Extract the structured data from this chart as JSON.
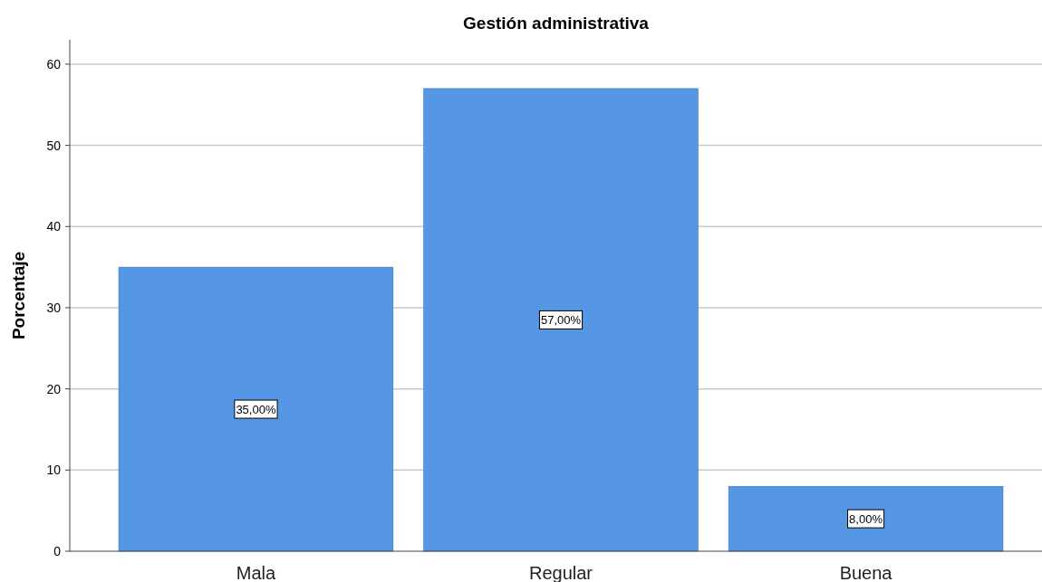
{
  "chart_data": {
    "type": "bar",
    "title": "Gestión administrativa",
    "ylabel": "Porcentaje",
    "categories": [
      "Mala",
      "Regular",
      "Buena"
    ],
    "values": [
      35,
      57,
      8
    ],
    "value_labels": [
      "35,00%",
      "57,00%",
      "8,00%"
    ],
    "color": "#5597e5",
    "ylim": [
      0,
      63
    ],
    "yticks": [
      0,
      10,
      20,
      30,
      40,
      50,
      60
    ],
    "grid": "y"
  }
}
